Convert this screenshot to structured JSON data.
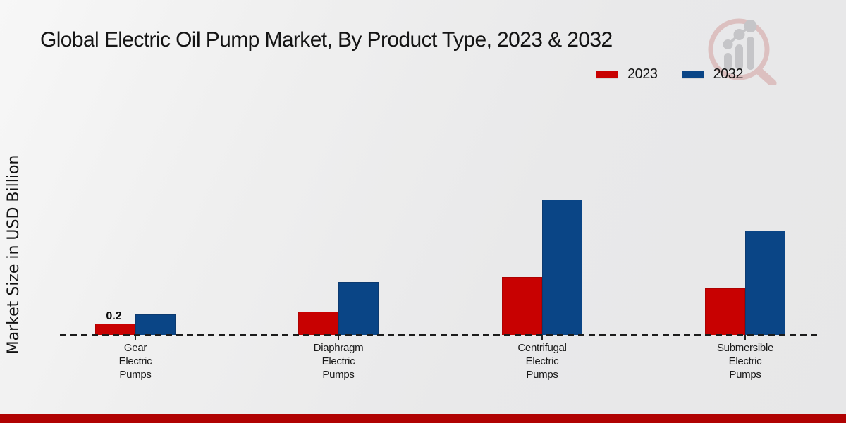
{
  "title": "Global Electric Oil Pump Market, By Product Type, 2023 & 2032",
  "y_axis_label": "Market Size in USD Billion",
  "colors": {
    "series_2023": "#c80101",
    "series_2032": "#0a4586",
    "footer_band": "#b00202",
    "background": "#ebebeb",
    "baseline": "#1c1c1c"
  },
  "chart_data": {
    "type": "bar",
    "categories": [
      "Gear Electric Pumps",
      "Diaphragm Electric Pumps",
      "Centrifugal Electric Pumps",
      "Submersible Electric Pumps"
    ],
    "categories_display": [
      "Gear\nElectric\nPumps",
      "Diaphragm\nElectric\nPumps",
      "Centrifugal\nElectric\nPumps",
      "Submersible\nElectric\nPumps"
    ],
    "series": [
      {
        "name": "2023",
        "color": "#c80101",
        "values": [
          0.2,
          0.41,
          1.02,
          0.82
        ]
      },
      {
        "name": "2032",
        "color": "#0a4586",
        "values": [
          0.36,
          0.94,
          2.4,
          1.85
        ]
      }
    ],
    "data_label": {
      "series": "2023",
      "category": "Gear Electric Pumps",
      "text": "0.2"
    },
    "xlabel": "",
    "ylabel": "Market Size in USD Billion",
    "ylim": [
      0,
      2.75
    ],
    "grid": false,
    "axis_line": "dashed-baseline",
    "legend_position": "top-right"
  },
  "logo": {
    "name": "magnifier-growth-chart-logo"
  }
}
